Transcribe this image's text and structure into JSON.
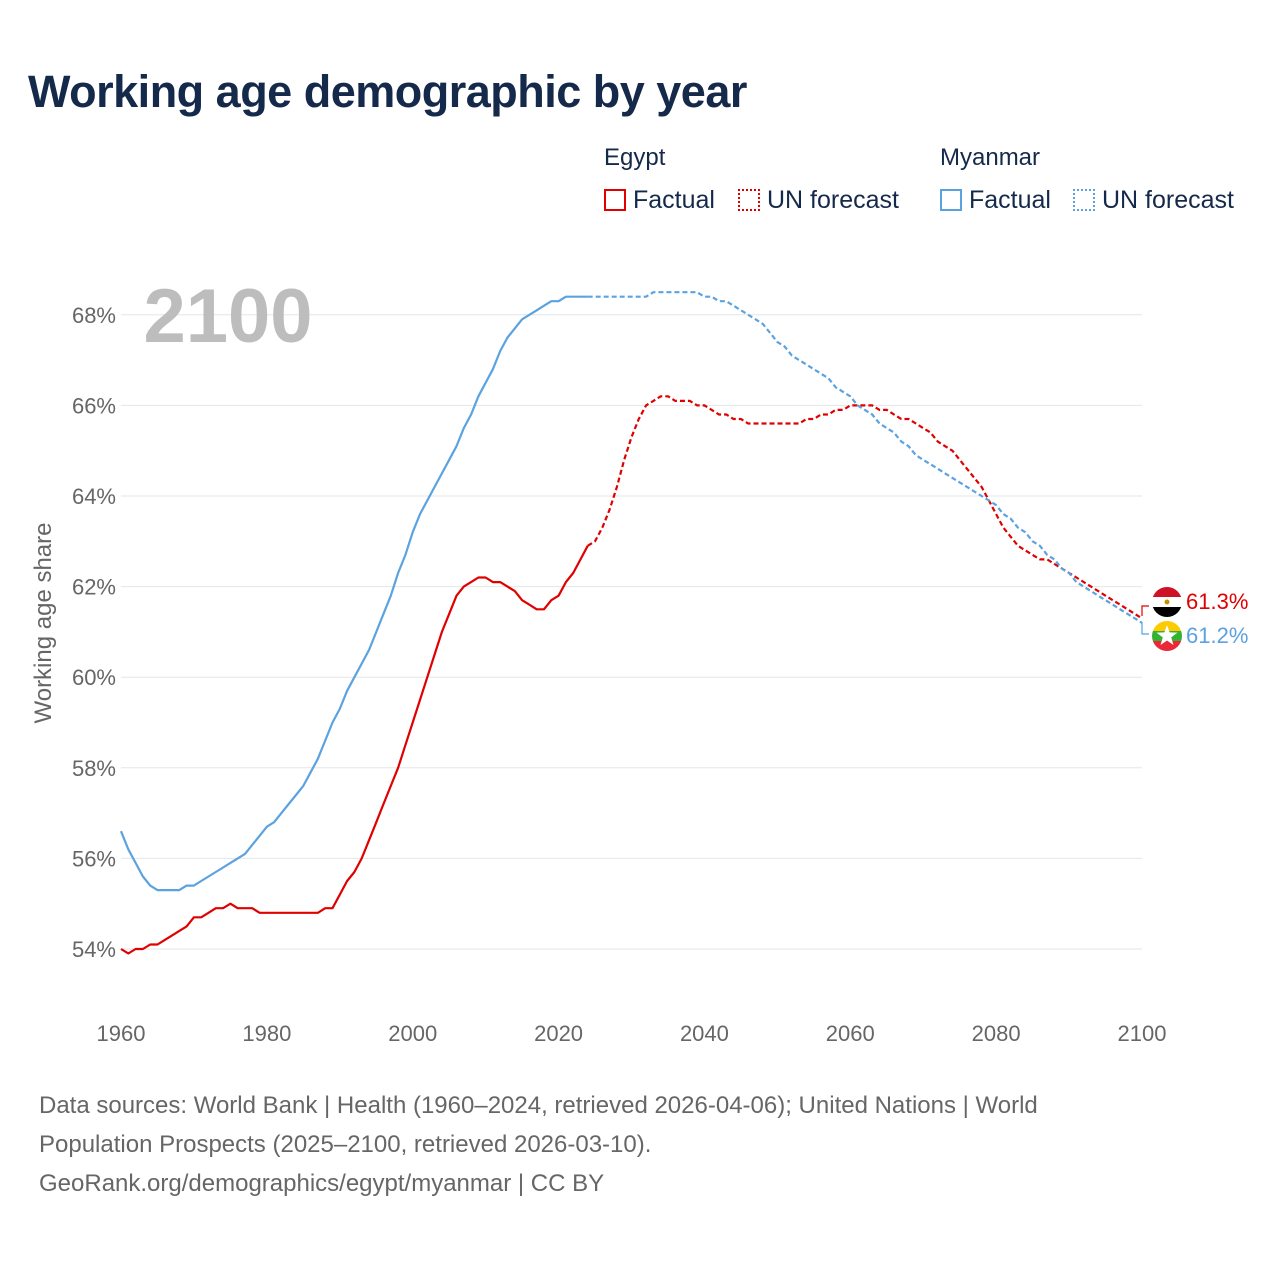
{
  "title": "Working age demographic by year",
  "legend": {
    "groups": [
      {
        "name": "Egypt",
        "color": "#e00000",
        "factual_label": "Factual",
        "forecast_label": "UN forecast"
      },
      {
        "name": "Myanmar",
        "color": "#5ba2e0",
        "factual_label": "Factual",
        "forecast_label": "UN forecast"
      }
    ]
  },
  "year_label": "2100",
  "end_labels": {
    "egypt": "61.3%",
    "myanmar": "61.2%"
  },
  "footer": {
    "line1": "Data sources: World Bank | Health (1960–2024, retrieved 2026-04-06); United Nations | World",
    "line2": "Population Prospects (2025–2100, retrieved 2026-03-10).",
    "line3": "GeoRank.org/demographics/egypt/myanmar | CC BY"
  },
  "chart_data": {
    "type": "line",
    "title": "Working age demographic by year",
    "xlabel": "",
    "ylabel": "Working age share",
    "xlim": [
      1960,
      2100
    ],
    "ylim": [
      53,
      69
    ],
    "x_ticks": [
      1960,
      1980,
      2000,
      2020,
      2040,
      2060,
      2080,
      2100
    ],
    "y_ticks": [
      54,
      56,
      58,
      60,
      62,
      64,
      66,
      68
    ],
    "y_tick_labels": [
      "54%",
      "56%",
      "58%",
      "60%",
      "62%",
      "64%",
      "66%",
      "68%"
    ],
    "grid": true,
    "factual_end_year": 2024,
    "series": [
      {
        "name": "Egypt",
        "color": "#e00000",
        "points": [
          [
            1960,
            54.0
          ],
          [
            1961,
            53.9
          ],
          [
            1962,
            54.0
          ],
          [
            1963,
            54.0
          ],
          [
            1964,
            54.1
          ],
          [
            1965,
            54.1
          ],
          [
            1966,
            54.2
          ],
          [
            1967,
            54.3
          ],
          [
            1968,
            54.4
          ],
          [
            1969,
            54.5
          ],
          [
            1970,
            54.7
          ],
          [
            1971,
            54.7
          ],
          [
            1972,
            54.8
          ],
          [
            1973,
            54.9
          ],
          [
            1974,
            54.9
          ],
          [
            1975,
            55.0
          ],
          [
            1976,
            54.9
          ],
          [
            1977,
            54.9
          ],
          [
            1978,
            54.9
          ],
          [
            1979,
            54.8
          ],
          [
            1980,
            54.8
          ],
          [
            1981,
            54.8
          ],
          [
            1982,
            54.8
          ],
          [
            1983,
            54.8
          ],
          [
            1984,
            54.8
          ],
          [
            1985,
            54.8
          ],
          [
            1986,
            54.8
          ],
          [
            1987,
            54.8
          ],
          [
            1988,
            54.9
          ],
          [
            1989,
            54.9
          ],
          [
            1990,
            55.2
          ],
          [
            1991,
            55.5
          ],
          [
            1992,
            55.7
          ],
          [
            1993,
            56.0
          ],
          [
            1994,
            56.4
          ],
          [
            1995,
            56.8
          ],
          [
            1996,
            57.2
          ],
          [
            1997,
            57.6
          ],
          [
            1998,
            58.0
          ],
          [
            1999,
            58.5
          ],
          [
            2000,
            59.0
          ],
          [
            2001,
            59.5
          ],
          [
            2002,
            60.0
          ],
          [
            2003,
            60.5
          ],
          [
            2004,
            61.0
          ],
          [
            2005,
            61.4
          ],
          [
            2006,
            61.8
          ],
          [
            2007,
            62.0
          ],
          [
            2008,
            62.1
          ],
          [
            2009,
            62.2
          ],
          [
            2010,
            62.2
          ],
          [
            2011,
            62.1
          ],
          [
            2012,
            62.1
          ],
          [
            2013,
            62.0
          ],
          [
            2014,
            61.9
          ],
          [
            2015,
            61.7
          ],
          [
            2016,
            61.6
          ],
          [
            2017,
            61.5
          ],
          [
            2018,
            61.5
          ],
          [
            2019,
            61.7
          ],
          [
            2020,
            61.8
          ],
          [
            2021,
            62.1
          ],
          [
            2022,
            62.3
          ],
          [
            2023,
            62.6
          ],
          [
            2024,
            62.9
          ],
          [
            2025,
            63.0
          ],
          [
            2026,
            63.3
          ],
          [
            2027,
            63.7
          ],
          [
            2028,
            64.2
          ],
          [
            2029,
            64.8
          ],
          [
            2030,
            65.3
          ],
          [
            2031,
            65.7
          ],
          [
            2032,
            66.0
          ],
          [
            2033,
            66.1
          ],
          [
            2034,
            66.2
          ],
          [
            2035,
            66.2
          ],
          [
            2036,
            66.1
          ],
          [
            2037,
            66.1
          ],
          [
            2038,
            66.1
          ],
          [
            2039,
            66.0
          ],
          [
            2040,
            66.0
          ],
          [
            2041,
            65.9
          ],
          [
            2042,
            65.8
          ],
          [
            2043,
            65.8
          ],
          [
            2044,
            65.7
          ],
          [
            2045,
            65.7
          ],
          [
            2046,
            65.6
          ],
          [
            2047,
            65.6
          ],
          [
            2048,
            65.6
          ],
          [
            2049,
            65.6
          ],
          [
            2050,
            65.6
          ],
          [
            2051,
            65.6
          ],
          [
            2052,
            65.6
          ],
          [
            2053,
            65.6
          ],
          [
            2054,
            65.7
          ],
          [
            2055,
            65.7
          ],
          [
            2056,
            65.8
          ],
          [
            2057,
            65.8
          ],
          [
            2058,
            65.9
          ],
          [
            2059,
            65.9
          ],
          [
            2060,
            66.0
          ],
          [
            2061,
            66.0
          ],
          [
            2062,
            66.0
          ],
          [
            2063,
            66.0
          ],
          [
            2064,
            65.9
          ],
          [
            2065,
            65.9
          ],
          [
            2066,
            65.8
          ],
          [
            2067,
            65.7
          ],
          [
            2068,
            65.7
          ],
          [
            2069,
            65.6
          ],
          [
            2070,
            65.5
          ],
          [
            2071,
            65.4
          ],
          [
            2072,
            65.2
          ],
          [
            2073,
            65.1
          ],
          [
            2074,
            65.0
          ],
          [
            2075,
            64.8
          ],
          [
            2076,
            64.6
          ],
          [
            2077,
            64.4
          ],
          [
            2078,
            64.2
          ],
          [
            2079,
            63.9
          ],
          [
            2080,
            63.6
          ],
          [
            2081,
            63.3
          ],
          [
            2082,
            63.1
          ],
          [
            2083,
            62.9
          ],
          [
            2084,
            62.8
          ],
          [
            2085,
            62.7
          ],
          [
            2086,
            62.6
          ],
          [
            2087,
            62.6
          ],
          [
            2088,
            62.5
          ],
          [
            2089,
            62.4
          ],
          [
            2090,
            62.3
          ],
          [
            2091,
            62.2
          ],
          [
            2092,
            62.1
          ],
          [
            2093,
            62.0
          ],
          [
            2094,
            61.9
          ],
          [
            2095,
            61.8
          ],
          [
            2096,
            61.7
          ],
          [
            2097,
            61.6
          ],
          [
            2098,
            61.5
          ],
          [
            2099,
            61.4
          ],
          [
            2100,
            61.3
          ]
        ]
      },
      {
        "name": "Myanmar",
        "color": "#5ba2e0",
        "points": [
          [
            1960,
            56.6
          ],
          [
            1961,
            56.2
          ],
          [
            1962,
            55.9
          ],
          [
            1963,
            55.6
          ],
          [
            1964,
            55.4
          ],
          [
            1965,
            55.3
          ],
          [
            1966,
            55.3
          ],
          [
            1967,
            55.3
          ],
          [
            1968,
            55.3
          ],
          [
            1969,
            55.4
          ],
          [
            1970,
            55.4
          ],
          [
            1971,
            55.5
          ],
          [
            1972,
            55.6
          ],
          [
            1973,
            55.7
          ],
          [
            1974,
            55.8
          ],
          [
            1975,
            55.9
          ],
          [
            1976,
            56.0
          ],
          [
            1977,
            56.1
          ],
          [
            1978,
            56.3
          ],
          [
            1979,
            56.5
          ],
          [
            1980,
            56.7
          ],
          [
            1981,
            56.8
          ],
          [
            1982,
            57.0
          ],
          [
            1983,
            57.2
          ],
          [
            1984,
            57.4
          ],
          [
            1985,
            57.6
          ],
          [
            1986,
            57.9
          ],
          [
            1987,
            58.2
          ],
          [
            1988,
            58.6
          ],
          [
            1989,
            59.0
          ],
          [
            1990,
            59.3
          ],
          [
            1991,
            59.7
          ],
          [
            1992,
            60.0
          ],
          [
            1993,
            60.3
          ],
          [
            1994,
            60.6
          ],
          [
            1995,
            61.0
          ],
          [
            1996,
            61.4
          ],
          [
            1997,
            61.8
          ],
          [
            1998,
            62.3
          ],
          [
            1999,
            62.7
          ],
          [
            2000,
            63.2
          ],
          [
            2001,
            63.6
          ],
          [
            2002,
            63.9
          ],
          [
            2003,
            64.2
          ],
          [
            2004,
            64.5
          ],
          [
            2005,
            64.8
          ],
          [
            2006,
            65.1
          ],
          [
            2007,
            65.5
          ],
          [
            2008,
            65.8
          ],
          [
            2009,
            66.2
          ],
          [
            2010,
            66.5
          ],
          [
            2011,
            66.8
          ],
          [
            2012,
            67.2
          ],
          [
            2013,
            67.5
          ],
          [
            2014,
            67.7
          ],
          [
            2015,
            67.9
          ],
          [
            2016,
            68.0
          ],
          [
            2017,
            68.1
          ],
          [
            2018,
            68.2
          ],
          [
            2019,
            68.3
          ],
          [
            2020,
            68.3
          ],
          [
            2021,
            68.4
          ],
          [
            2022,
            68.4
          ],
          [
            2023,
            68.4
          ],
          [
            2024,
            68.4
          ],
          [
            2025,
            68.4
          ],
          [
            2026,
            68.4
          ],
          [
            2027,
            68.4
          ],
          [
            2028,
            68.4
          ],
          [
            2029,
            68.4
          ],
          [
            2030,
            68.4
          ],
          [
            2031,
            68.4
          ],
          [
            2032,
            68.4
          ],
          [
            2033,
            68.5
          ],
          [
            2034,
            68.5
          ],
          [
            2035,
            68.5
          ],
          [
            2036,
            68.5
          ],
          [
            2037,
            68.5
          ],
          [
            2038,
            68.5
          ],
          [
            2039,
            68.5
          ],
          [
            2040,
            68.4
          ],
          [
            2041,
            68.4
          ],
          [
            2042,
            68.3
          ],
          [
            2043,
            68.3
          ],
          [
            2044,
            68.2
          ],
          [
            2045,
            68.1
          ],
          [
            2046,
            68.0
          ],
          [
            2047,
            67.9
          ],
          [
            2048,
            67.8
          ],
          [
            2049,
            67.6
          ],
          [
            2050,
            67.4
          ],
          [
            2051,
            67.3
          ],
          [
            2052,
            67.1
          ],
          [
            2053,
            67.0
          ],
          [
            2054,
            66.9
          ],
          [
            2055,
            66.8
          ],
          [
            2056,
            66.7
          ],
          [
            2057,
            66.6
          ],
          [
            2058,
            66.4
          ],
          [
            2059,
            66.3
          ],
          [
            2060,
            66.2
          ],
          [
            2061,
            66.0
          ],
          [
            2062,
            65.9
          ],
          [
            2063,
            65.8
          ],
          [
            2064,
            65.6
          ],
          [
            2065,
            65.5
          ],
          [
            2066,
            65.4
          ],
          [
            2067,
            65.2
          ],
          [
            2068,
            65.1
          ],
          [
            2069,
            64.9
          ],
          [
            2070,
            64.8
          ],
          [
            2071,
            64.7
          ],
          [
            2072,
            64.6
          ],
          [
            2073,
            64.5
          ],
          [
            2074,
            64.4
          ],
          [
            2075,
            64.3
          ],
          [
            2076,
            64.2
          ],
          [
            2077,
            64.1
          ],
          [
            2078,
            64.0
          ],
          [
            2079,
            63.9
          ],
          [
            2080,
            63.8
          ],
          [
            2081,
            63.6
          ],
          [
            2082,
            63.5
          ],
          [
            2083,
            63.3
          ],
          [
            2084,
            63.2
          ],
          [
            2085,
            63.0
          ],
          [
            2086,
            62.9
          ],
          [
            2087,
            62.7
          ],
          [
            2088,
            62.6
          ],
          [
            2089,
            62.4
          ],
          [
            2090,
            62.3
          ],
          [
            2091,
            62.1
          ],
          [
            2092,
            62.0
          ],
          [
            2093,
            61.9
          ],
          [
            2094,
            61.8
          ],
          [
            2095,
            61.7
          ],
          [
            2096,
            61.6
          ],
          [
            2097,
            61.5
          ],
          [
            2098,
            61.4
          ],
          [
            2099,
            61.3
          ],
          [
            2100,
            61.2
          ]
        ]
      }
    ]
  }
}
